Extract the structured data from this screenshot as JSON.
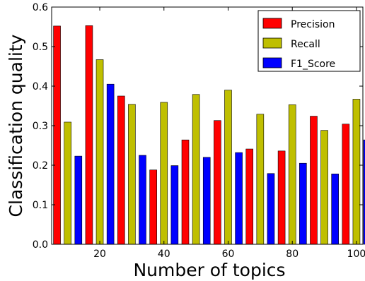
{
  "chart_data": {
    "type": "bar",
    "title": "",
    "xlabel": "Number of topics",
    "ylabel": "Classification quality",
    "categories": [
      10,
      20,
      30,
      40,
      50,
      60,
      70,
      80,
      90,
      100
    ],
    "x_tick_labels": [
      "20",
      "40",
      "60",
      "80",
      "100"
    ],
    "x_tick_values": [
      20,
      40,
      60,
      80,
      100
    ],
    "y_tick_labels": [
      "0.0",
      "0.1",
      "0.2",
      "0.3",
      "0.4",
      "0.5",
      "0.6"
    ],
    "ylim": [
      0,
      0.6
    ],
    "xlim": [
      5,
      102
    ],
    "grid": false,
    "legend_position": "top-right",
    "series": [
      {
        "name": "Precision",
        "color": "#ff0000",
        "values": [
          0.552,
          0.553,
          0.375,
          0.188,
          0.264,
          0.313,
          0.241,
          0.236,
          0.324,
          0.304
        ]
      },
      {
        "name": "Recall",
        "color": "#bfbf00",
        "values": [
          0.309,
          0.467,
          0.354,
          0.359,
          0.379,
          0.39,
          0.329,
          0.353,
          0.288,
          0.367
        ]
      },
      {
        "name": "F1_Score",
        "color": "#0000ff",
        "values": [
          0.223,
          0.405,
          0.225,
          0.199,
          0.22,
          0.232,
          0.179,
          0.205,
          0.178,
          0.264
        ]
      }
    ]
  }
}
